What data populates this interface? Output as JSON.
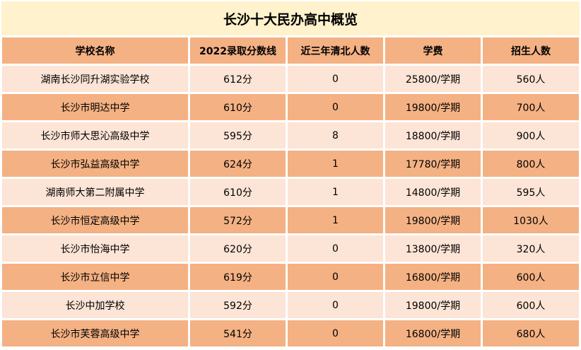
{
  "title": "长沙十大民办高中概览",
  "headers": [
    "学校名称",
    "2022录取分数线",
    "近三年清北人数",
    "学费",
    "招生人数"
  ],
  "rows": [
    [
      "湖南长沙同升湖实验学校",
      "612分",
      "0",
      "25800/学期",
      "560人"
    ],
    [
      "长沙市明达中学",
      "610分",
      "0",
      "19800/学期",
      "700人"
    ],
    [
      "长沙市师大思沁高级中学",
      "595分",
      "8",
      "18800/学期",
      "900人"
    ],
    [
      "长沙市弘益高级中学",
      "624分",
      "1",
      "17780/学期",
      "800人"
    ],
    [
      "湖南师大第二附属中学",
      "610分",
      "1",
      "14800/学期",
      "595人"
    ],
    [
      "长沙市恒定高级中学",
      "572分",
      "1",
      "19800/学期",
      "1030人"
    ],
    [
      "长沙市怡海中学",
      "620分",
      "0",
      "13800/学期",
      "320人"
    ],
    [
      "长沙市立信中学",
      "619分",
      "0",
      "16800/学期",
      "600人"
    ],
    [
      "长沙中加学校",
      "592分",
      "0",
      "19800/学期",
      "600人"
    ],
    [
      "长沙市芙蓉高级中学",
      "541分",
      "0",
      "16800/学期",
      "680人"
    ]
  ],
  "colors": {
    "title_bg": "#fff2cc",
    "header_bg": "#f4b183",
    "row_dark": "#f4b183",
    "row_light": "#fce4d6"
  }
}
